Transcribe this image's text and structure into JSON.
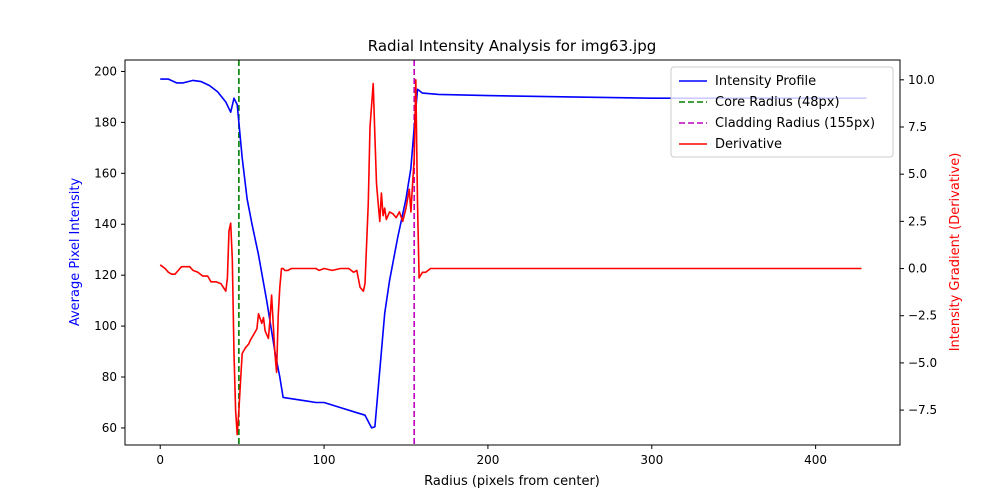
{
  "chart_data": {
    "type": "line",
    "title": "Radial Intensity Analysis for img63.jpg",
    "xlabel": "Radius (pixels from center)",
    "ylabel_left": "Average Pixel Intensity",
    "ylabel_right": "Intensity Gradient (Derivative)",
    "xlim": [
      -21.5,
      451.5
    ],
    "ylim_left": [
      53.3,
      204.5
    ],
    "ylim_right": [
      -9.35,
      11.05
    ],
    "x_ticks": [
      0,
      100,
      200,
      300,
      400
    ],
    "y_left_ticks": [
      60,
      80,
      100,
      120,
      140,
      160,
      180,
      200
    ],
    "y_right_ticks": [
      -7.5,
      -5.0,
      -2.5,
      0.0,
      2.5,
      5.0,
      7.5,
      10.0
    ],
    "x_tick_labels": [
      "0",
      "100",
      "200",
      "300",
      "400"
    ],
    "y_left_tick_labels": [
      "60",
      "80",
      "100",
      "120",
      "140",
      "160",
      "180",
      "200"
    ],
    "y_right_tick_labels": [
      "−7.5",
      "−5.0",
      "−2.5",
      "0.0",
      "2.5",
      "5.0",
      "7.5",
      "10.0"
    ],
    "vlines": [
      {
        "name": "Core Radius (48px)",
        "x": 48,
        "color": "#008000",
        "style": "dashed"
      },
      {
        "name": "Cladding Radius (155px)",
        "x": 155,
        "color": "#bf00bf",
        "style": "dashed"
      }
    ],
    "series": [
      {
        "name": "Intensity Profile",
        "axis": "left",
        "color": "#0000ff",
        "x": [
          0,
          5,
          10,
          14,
          20,
          25,
          30,
          35,
          40,
          43,
          45,
          47,
          50,
          53,
          56,
          60,
          65,
          70,
          73,
          75,
          80,
          85,
          90,
          95,
          100,
          110,
          120,
          125,
          129,
          131,
          133,
          135,
          137,
          140,
          145,
          150,
          153,
          155,
          157,
          160,
          170,
          200,
          250,
          300,
          350,
          400,
          431
        ],
        "values": [
          197,
          197,
          195.5,
          195.5,
          196.5,
          196,
          194.5,
          192,
          188,
          184,
          189.5,
          187,
          166,
          150,
          140,
          128,
          110,
          90,
          80,
          72,
          71.5,
          71,
          70.5,
          70,
          70,
          68,
          66,
          65,
          60,
          60.5,
          75,
          90,
          105,
          118,
          135,
          150,
          162,
          178,
          193,
          191.5,
          191,
          190.5,
          190,
          189.5,
          189.5,
          189.5,
          189.5
        ]
      },
      {
        "name": "Derivative",
        "axis": "right",
        "color": "#ff0000",
        "x": [
          0,
          3,
          5,
          7,
          9,
          11,
          13,
          15,
          18,
          20,
          23,
          26,
          29,
          31,
          34,
          37,
          40,
          41,
          42,
          43,
          44,
          45,
          46,
          47,
          48,
          49,
          50,
          52,
          54,
          55,
          57,
          59,
          60,
          62,
          63,
          64,
          66,
          67,
          68,
          69,
          70,
          71,
          72,
          73,
          74,
          75,
          76,
          78,
          80,
          85,
          90,
          95,
          97,
          100,
          105,
          110,
          115,
          118,
          120,
          122,
          124,
          125,
          127,
          128,
          130,
          131,
          132,
          133,
          134,
          135,
          136,
          137,
          138,
          140,
          142,
          144,
          146,
          148,
          150,
          151,
          152,
          153,
          154,
          155,
          156,
          157,
          158,
          160,
          162,
          165,
          170,
          180,
          200,
          250,
          300,
          350,
          400,
          428
        ],
        "values": [
          0.2,
          0,
          -0.2,
          -0.3,
          -0.3,
          -0.1,
          0.1,
          0.1,
          0.1,
          -0.1,
          -0.2,
          -0.4,
          -0.4,
          -0.7,
          -0.7,
          -0.8,
          -1.2,
          -0.5,
          2.0,
          2.4,
          0.5,
          -4.5,
          -7.5,
          -8.8,
          -7.5,
          -6.0,
          -4.5,
          -4.2,
          -4.0,
          -3.8,
          -3.5,
          -3.2,
          -2.4,
          -2.9,
          -2.6,
          -3.3,
          -3.7,
          -2.7,
          -1.4,
          -3.0,
          -4.5,
          -5.5,
          -2.5,
          -1.0,
          0,
          0,
          -0.1,
          -0.1,
          0,
          0,
          0,
          0,
          -0.1,
          0,
          -0.1,
          0,
          0,
          -0.2,
          -0.1,
          -1.0,
          -1.2,
          -0.8,
          3.5,
          7.5,
          9.8,
          7.0,
          4.5,
          3.5,
          2.5,
          4.0,
          2.8,
          3.2,
          2.6,
          3.0,
          2.9,
          2.7,
          3.0,
          2.5,
          3.2,
          3.7,
          4.2,
          3.0,
          4.5,
          5.8,
          10.0,
          3.5,
          -0.5,
          -0.2,
          -0.2,
          0,
          0,
          0,
          0,
          0,
          0,
          0,
          0,
          0
        ]
      }
    ],
    "legend": {
      "placement": "top-right",
      "entries": [
        {
          "label": "Intensity Profile",
          "color": "#0000ff",
          "style": "solid"
        },
        {
          "label": "Core Radius (48px)",
          "color": "#008000",
          "style": "dashed"
        },
        {
          "label": "Cladding Radius (155px)",
          "color": "#bf00bf",
          "style": "dashed"
        },
        {
          "label": "Derivative",
          "color": "#ff0000",
          "style": "solid"
        }
      ]
    },
    "grid": false,
    "colors": {
      "left_label": "#0000ff",
      "right_label": "#ff0000"
    }
  }
}
